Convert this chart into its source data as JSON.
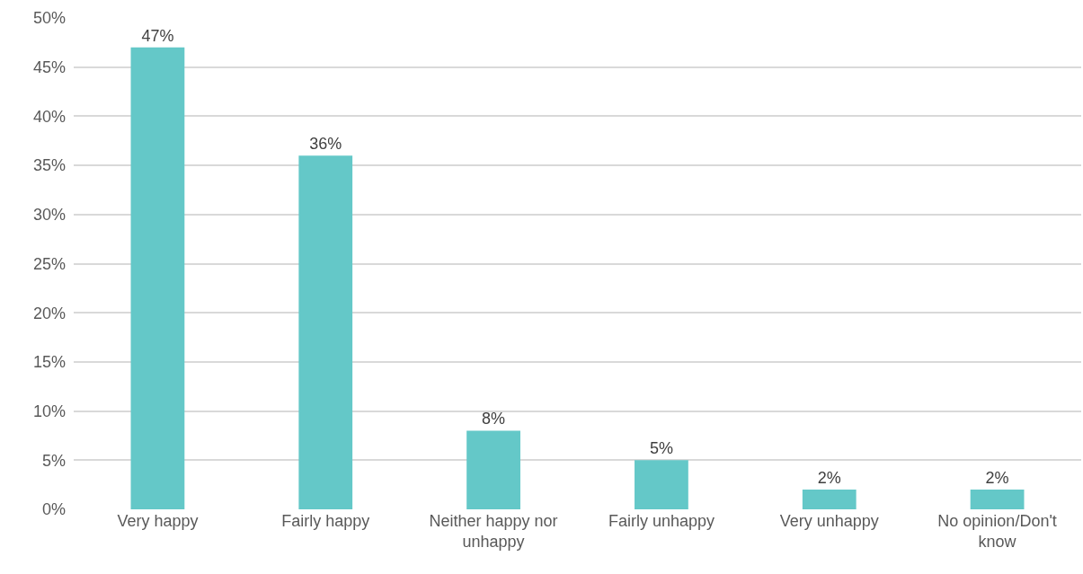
{
  "chart_data": {
    "type": "bar",
    "categories": [
      "Very happy",
      "Fairly happy",
      "Neither happy nor unhappy",
      "Fairly unhappy",
      "Very unhappy",
      "No opinion/Don't know"
    ],
    "values": [
      47,
      36,
      8,
      5,
      2,
      2
    ],
    "value_labels": [
      "47%",
      "36%",
      "8%",
      "5%",
      "2%",
      "2%"
    ],
    "color": "#64c8c8",
    "ylim": [
      0,
      50
    ],
    "yticks": [
      {
        "value": 0,
        "label": "0%"
      },
      {
        "value": 5,
        "label": "5%"
      },
      {
        "value": 10,
        "label": "10%"
      },
      {
        "value": 15,
        "label": "15%"
      },
      {
        "value": 20,
        "label": "20%"
      },
      {
        "value": 25,
        "label": "25%"
      },
      {
        "value": 30,
        "label": "30%"
      },
      {
        "value": 35,
        "label": "35%"
      },
      {
        "value": 40,
        "label": "40%"
      },
      {
        "value": 45,
        "label": "45%"
      },
      {
        "value": 50,
        "label": "50%"
      }
    ],
    "grid": "y"
  }
}
